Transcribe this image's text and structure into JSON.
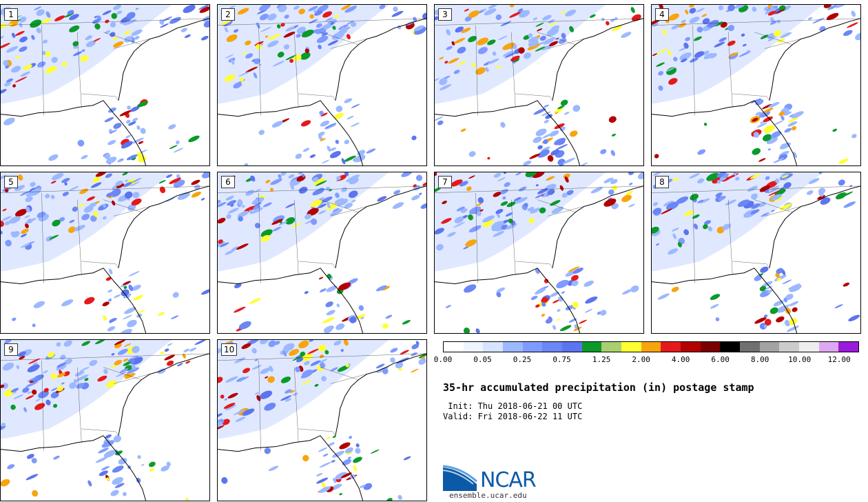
{
  "members": [
    "1",
    "2",
    "3",
    "4",
    "5",
    "6",
    "7",
    "8",
    "9",
    "10"
  ],
  "colorbar": {
    "colors": [
      "#ffffff",
      "#eef5ff",
      "#d6e4ff",
      "#9cb8ff",
      "#7f9bff",
      "#6b86f5",
      "#5c74ee",
      "#0a9a2a",
      "#a9cf6e",
      "#ffff33",
      "#f7a40e",
      "#e5191b",
      "#b30000",
      "#7a0000",
      "#000000",
      "#707070",
      "#a3a3a3",
      "#cccccc",
      "#eeeeee",
      "#dda8f2",
      "#9a1bd9"
    ],
    "tick_labels": [
      "0.00",
      "0.05",
      "0.25",
      "0.75",
      "1.25",
      "2.00",
      "4.00",
      "6.00",
      "8.00",
      "10.00",
      "12.00"
    ]
  },
  "title": "35-hr accumulated precipitation (in) postage stamp",
  "init_line": " Init: Thu 2018-06-21 00 UTC",
  "valid_line": "Valid: Fri 2018-06-22 11 UTC",
  "logo_text": "NCAR",
  "site": "ensemble.ucar.edu"
}
